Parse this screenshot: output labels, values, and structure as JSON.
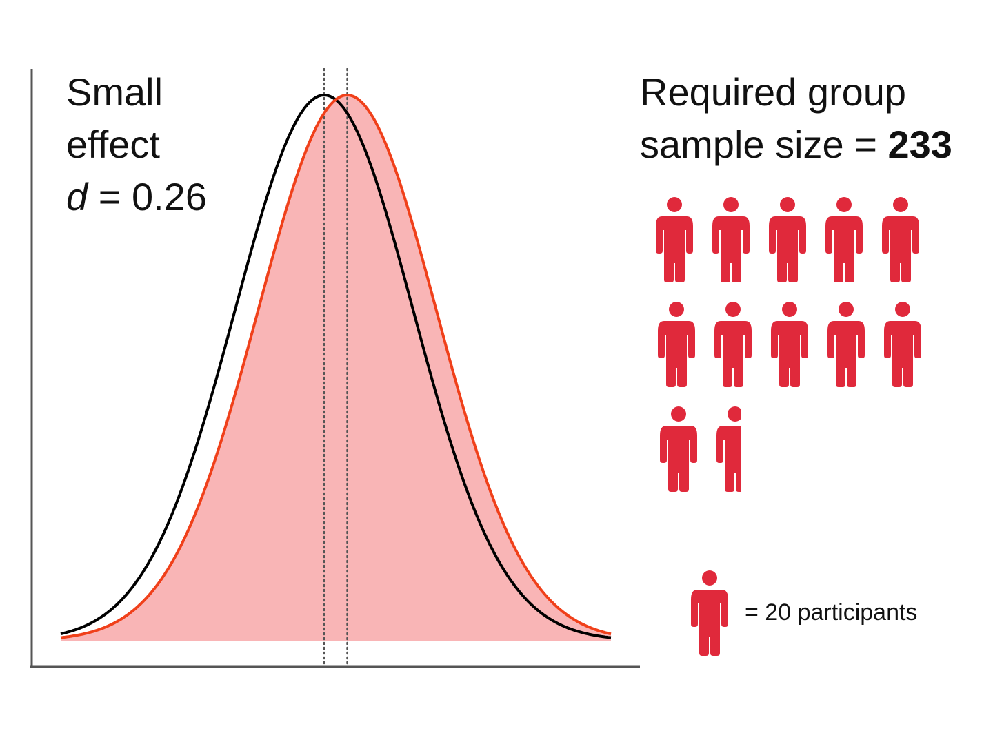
{
  "effect": {
    "line1": "Small",
    "line2": "effect",
    "d_symbol": "d",
    "d_rest": " = 0.26"
  },
  "required": {
    "line1": "Required group",
    "line2_prefix": "sample size = ",
    "value": "233"
  },
  "legend": {
    "text": "= 20 participants",
    "icon": "person-icon"
  },
  "chart_data": {
    "type": "area",
    "effect_size_d": 0.26,
    "sample_size": 233,
    "participants_per_icon": 20,
    "icon_count": 11.65,
    "series": [
      {
        "kind": "normal-curve",
        "mean": 0,
        "sd": 1,
        "color": "#000000"
      },
      {
        "kind": "normal-curve",
        "mean": 0.26,
        "sd": 1,
        "color": "#f0401a",
        "fill": "#f9b5b6"
      }
    ]
  },
  "colors": {
    "icon": "#e0293b",
    "fill": "#f9b5b6",
    "red_curve": "#f0401a",
    "black_curve": "#000000"
  }
}
